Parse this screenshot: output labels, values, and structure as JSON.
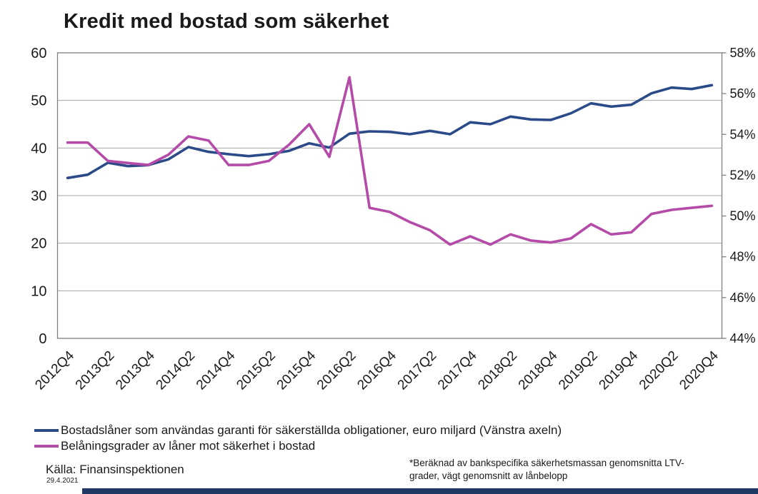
{
  "page": {
    "title": "Kredit med bostad som säkerhet",
    "source": "Källa: Finansinspektionen",
    "date": "29.4.2021",
    "footnote_line1": "*Beräknad av bankspecifika säkerhetsmassan genomsnitta LTV-",
    "footnote_line2": "grader, vägt genomsnitt av lånbelopp"
  },
  "colors": {
    "series_left": "#2b4a88",
    "series_right": "#b44ba8",
    "gridline": "#a6a6a6",
    "plot_border": "#7f7f7f",
    "footer_bar": "#1f3864",
    "text": "#1a1a1a"
  },
  "legend": [
    {
      "label": "Bostadslåner som användas garanti för säkerställda obligationer, euro miljard (Vänstra axeln)",
      "color": "#2b4a88"
    },
    {
      "label": "Belåningsgrader av låner mot säkerhet i bostad",
      "color": "#b44ba8"
    }
  ],
  "chart_data": {
    "type": "line",
    "title": "Kredit med bostad som säkerhet",
    "grid": "horizontal",
    "legend_position": "bottom-left",
    "x": [
      "2012Q4",
      "2013Q1",
      "2013Q2",
      "2013Q3",
      "2013Q4",
      "2014Q1",
      "2014Q2",
      "2014Q3",
      "2014Q4",
      "2015Q1",
      "2015Q2",
      "2015Q3",
      "2015Q4",
      "2016Q1",
      "2016Q2",
      "2016Q3",
      "2016Q4",
      "2017Q1",
      "2017Q2",
      "2017Q3",
      "2017Q4",
      "2018Q1",
      "2018Q2",
      "2018Q3",
      "2018Q4",
      "2019Q1",
      "2019Q2",
      "2019Q3",
      "2019Q4",
      "2020Q1",
      "2020Q2",
      "2020Q3",
      "2020Q4"
    ],
    "x_tick_labels": [
      "2012Q4",
      "2013Q2",
      "2013Q4",
      "2014Q2",
      "2014Q4",
      "2015Q2",
      "2015Q4",
      "2016Q2",
      "2016Q4",
      "2017Q2",
      "2017Q4",
      "2018Q2",
      "2018Q4",
      "2019Q2",
      "2019Q4",
      "2020Q2",
      "2020Q4"
    ],
    "x_tick_every": 2,
    "left_axis": {
      "min": 0,
      "max": 60,
      "ticks": [
        0,
        10,
        20,
        30,
        40,
        50,
        60
      ],
      "tick_labels": [
        "0",
        "10",
        "20",
        "30",
        "40",
        "50",
        "60"
      ]
    },
    "right_axis": {
      "min": 44,
      "max": 58,
      "ticks": [
        44,
        46,
        48,
        50,
        52,
        54,
        56,
        58
      ],
      "tick_labels": [
        "44%",
        "46%",
        "48%",
        "50%",
        "52%",
        "54%",
        "56%",
        "58%"
      ]
    },
    "series": [
      {
        "name": "Bostadslåner som användas garanti för säkerställda obligationer, euro miljard (Vänstra axeln)",
        "axis": "left",
        "unit": "euro miljard",
        "color": "#2b4a88",
        "values": [
          33.7,
          34.4,
          36.9,
          36.2,
          36.4,
          37.6,
          40.2,
          39.2,
          38.7,
          38.3,
          38.7,
          39.4,
          41.0,
          40.1,
          43.0,
          43.5,
          43.4,
          42.9,
          43.6,
          42.9,
          45.4,
          45.0,
          46.6,
          46.0,
          45.9,
          47.3,
          49.4,
          48.7,
          49.1,
          51.5,
          52.7,
          52.4,
          53.2
        ]
      },
      {
        "name": "Belåningsgrader av låner mot säkerhet i bostad",
        "axis": "right",
        "unit": "%",
        "color": "#b44ba8",
        "values": [
          53.6,
          53.6,
          52.7,
          52.6,
          52.5,
          53.0,
          53.9,
          53.7,
          52.5,
          52.5,
          52.7,
          53.5,
          54.5,
          52.9,
          56.8,
          50.4,
          50.2,
          49.7,
          49.3,
          48.6,
          49.0,
          48.6,
          49.1,
          48.8,
          48.7,
          48.9,
          49.6,
          49.1,
          49.2,
          50.1,
          50.3,
          50.4,
          50.5
        ]
      }
    ]
  }
}
